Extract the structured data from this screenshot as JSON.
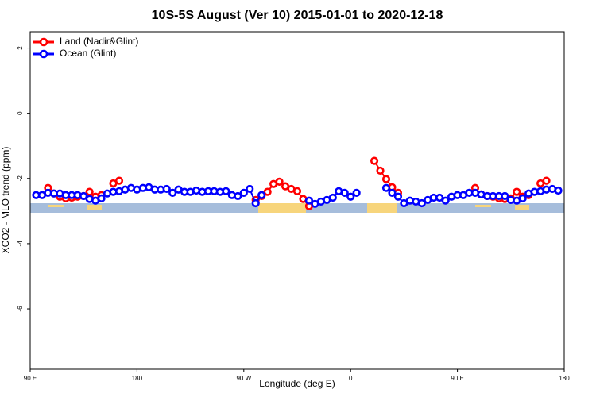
{
  "chart_data": {
    "type": "line",
    "title": "10S-5S August (Ver 10)   2015-01-01 to 2020-12-18",
    "xlabel": "Longitude (deg E)",
    "ylabel": "XCO2 - MLO trend (ppm)",
    "xlim": [
      90,
      540
    ],
    "xticks": [
      {
        "value": 90,
        "label": "90 E"
      },
      180,
      {
        "value": 270,
        "label": "90 W"
      },
      {
        "value": 360,
        "label": "0"
      },
      {
        "value": 450,
        "label": "90 E"
      },
      {
        "value": 540,
        "label": "180"
      }
    ],
    "ylim": [
      -7.85,
      2.5
    ],
    "yticks": [
      -6,
      -4,
      -2,
      0,
      2
    ],
    "legend": "top-left",
    "series": [
      {
        "name": "Land (Nadir&Glint)",
        "color": "#ff0000",
        "x": [
          105,
          110,
          115,
          120,
          125,
          130,
          135,
          140,
          145,
          150,
          155,
          160,
          165,
          170,
          280,
          285,
          290,
          295,
          300,
          305,
          310,
          315,
          320,
          325,
          330,
          380,
          385,
          390,
          395,
          400,
          405,
          465,
          470,
          475,
          480,
          485,
          490,
          495,
          500,
          505,
          510,
          515,
          520,
          525
        ],
        "values": [
          -2.29,
          -2.46,
          -2.56,
          -2.61,
          -2.59,
          -2.56,
          -2.54,
          -2.41,
          -2.56,
          -2.51,
          null,
          -2.15,
          -2.07,
          null,
          -2.66,
          -2.54,
          -2.41,
          -2.17,
          -2.1,
          -2.24,
          -2.32,
          -2.39,
          -2.63,
          -2.85,
          null,
          -1.46,
          -1.76,
          -2.02,
          -2.27,
          -2.44,
          null,
          -2.29,
          -2.49,
          -2.54,
          -2.56,
          -2.61,
          -2.63,
          -2.61,
          -2.41,
          -2.56,
          -2.51,
          null,
          -2.15,
          -2.07
        ]
      },
      {
        "name": "Ocean (Glint)",
        "color": "#0000ff",
        "x": [
          95,
          100,
          105,
          110,
          115,
          120,
          125,
          130,
          135,
          140,
          145,
          150,
          155,
          160,
          165,
          170,
          175,
          180,
          185,
          190,
          195,
          200,
          205,
          210,
          215,
          220,
          225,
          230,
          235,
          240,
          245,
          250,
          255,
          260,
          265,
          270,
          275,
          280,
          285,
          290,
          295,
          300,
          305,
          310,
          315,
          320,
          325,
          330,
          335,
          340,
          345,
          350,
          355,
          360,
          365,
          370,
          375,
          380,
          385,
          390,
          395,
          400,
          405,
          410,
          415,
          420,
          425,
          430,
          435,
          440,
          445,
          450,
          455,
          460,
          465,
          470,
          475,
          480,
          485,
          490,
          495,
          500,
          505,
          510,
          515,
          520,
          525,
          530,
          535
        ],
        "values": [
          -2.51,
          -2.51,
          -2.44,
          -2.46,
          -2.46,
          -2.51,
          -2.51,
          -2.51,
          -2.54,
          -2.63,
          -2.68,
          -2.61,
          -2.46,
          -2.41,
          -2.39,
          -2.34,
          -2.29,
          -2.34,
          -2.29,
          -2.27,
          -2.34,
          -2.34,
          -2.32,
          -2.44,
          -2.34,
          -2.41,
          -2.41,
          -2.37,
          -2.41,
          -2.39,
          -2.39,
          -2.41,
          -2.39,
          -2.51,
          -2.54,
          -2.44,
          -2.32,
          -2.76,
          -2.51,
          null,
          null,
          null,
          null,
          null,
          null,
          null,
          -2.68,
          -2.78,
          -2.71,
          -2.66,
          -2.59,
          -2.39,
          -2.44,
          -2.56,
          -2.44,
          null,
          null,
          null,
          null,
          -2.29,
          -2.44,
          -2.56,
          -2.76,
          -2.68,
          -2.71,
          -2.76,
          -2.66,
          -2.59,
          -2.59,
          -2.68,
          -2.56,
          -2.51,
          -2.51,
          -2.44,
          -2.44,
          -2.49,
          -2.54,
          -2.54,
          -2.54,
          -2.54,
          -2.66,
          -2.68,
          -2.61,
          -2.46,
          -2.41,
          -2.39,
          -2.34,
          -2.32,
          -2.37
        ]
      }
    ]
  }
}
